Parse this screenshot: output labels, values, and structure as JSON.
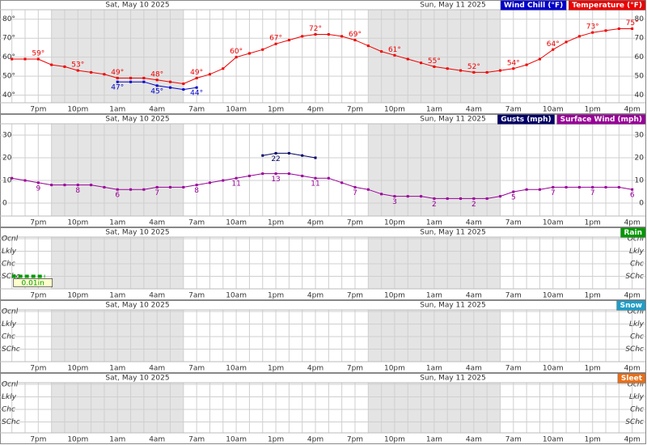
{
  "chart_data": [
    {
      "type": "line",
      "xlim": [
        0.1,
        49
      ],
      "ylim": [
        36,
        85
      ],
      "grid": true,
      "days": [
        "Sat, May 10 2025",
        "Sun, May 11 2025"
      ],
      "night": [
        [
          4,
          14
        ],
        [
          28,
          38
        ]
      ],
      "xticks": [
        {
          "value": 3,
          "label": "7pm"
        },
        {
          "value": 6,
          "label": "10pm"
        },
        {
          "value": 9,
          "label": "1am"
        },
        {
          "value": 12,
          "label": "4am"
        },
        {
          "value": 15,
          "label": "7am"
        },
        {
          "value": 18,
          "label": "10am"
        },
        {
          "value": 21,
          "label": "1pm"
        },
        {
          "value": 24,
          "label": "4pm"
        },
        {
          "value": 27,
          "label": "7pm"
        },
        {
          "value": 30,
          "label": "10pm"
        },
        {
          "value": 33,
          "label": "1am"
        },
        {
          "value": 36,
          "label": "4am"
        },
        {
          "value": 39,
          "label": "7am"
        },
        {
          "value": 42,
          "label": "10am"
        },
        {
          "value": 45,
          "label": "1pm"
        },
        {
          "value": 48,
          "label": "4pm"
        }
      ],
      "xminorticks": [
        1,
        2,
        3,
        4,
        5,
        6,
        7,
        8,
        9,
        10,
        11,
        12,
        13,
        14,
        15,
        16,
        17,
        18,
        19,
        20,
        21,
        22,
        23,
        24,
        25,
        26,
        27,
        28,
        29,
        30,
        31,
        32,
        33,
        34,
        35,
        36,
        37,
        38,
        39,
        40,
        41,
        42,
        43,
        44,
        45,
        46,
        47,
        48
      ],
      "yticks": [
        {
          "value": 40,
          "label": "40°"
        },
        {
          "value": 50,
          "label": "50°"
        },
        {
          "value": 60,
          "label": "60°"
        },
        {
          "value": 70,
          "label": "70°"
        },
        {
          "value": 80,
          "label": "80°"
        }
      ],
      "x": [
        1,
        2,
        3,
        4,
        5,
        6,
        7,
        8,
        9,
        10,
        11,
        12,
        13,
        14,
        15,
        16,
        17,
        18,
        19,
        20,
        21,
        22,
        23,
        24,
        25,
        26,
        27,
        28,
        29,
        30,
        31,
        32,
        33,
        34,
        35,
        36,
        37,
        38,
        39,
        40,
        41,
        42,
        43,
        44,
        45,
        46,
        47,
        48
      ],
      "series": [
        {
          "name": "Wind Chill (°F)",
          "color": "#0000cc",
          "label_position": "below",
          "values": [
            null,
            null,
            null,
            null,
            null,
            null,
            null,
            null,
            47,
            47,
            47,
            45,
            44,
            43,
            44,
            null,
            null,
            null,
            null,
            null,
            null,
            null,
            null,
            null,
            null,
            null,
            null,
            null,
            null,
            null,
            null,
            null,
            null,
            null,
            null,
            null,
            null,
            null,
            null,
            null,
            null,
            null,
            null,
            null,
            null,
            null,
            null,
            null
          ],
          "value_labels": [
            null,
            null,
            null,
            null,
            null,
            null,
            null,
            null,
            "47°",
            null,
            null,
            "45°",
            null,
            null,
            "44°",
            null,
            null,
            null,
            null,
            null,
            null,
            null,
            null,
            null,
            null,
            null,
            null,
            null,
            null,
            null,
            null,
            null,
            null,
            null,
            null,
            null,
            null,
            null,
            null,
            null,
            null,
            null,
            null,
            null,
            null,
            null,
            null,
            null
          ]
        },
        {
          "name": "Temperature (°F)",
          "color": "#ee0000",
          "label_position": "above",
          "values": [
            59,
            59,
            59,
            56,
            55,
            53,
            52,
            51,
            49,
            49,
            49,
            48,
            47,
            46,
            49,
            51,
            54,
            60,
            62,
            64,
            67,
            69,
            71,
            72,
            72,
            71,
            69,
            66,
            63,
            61,
            59,
            57,
            55,
            54,
            53,
            52,
            52,
            53,
            54,
            56,
            59,
            64,
            68,
            71,
            73,
            74,
            75,
            75
          ],
          "value_labels": [
            null,
            null,
            "59°",
            null,
            null,
            "53°",
            null,
            null,
            "49°",
            null,
            null,
            "48°",
            null,
            null,
            "49°",
            null,
            null,
            "60°",
            null,
            null,
            "67°",
            null,
            null,
            "72°",
            null,
            null,
            "69°",
            null,
            null,
            "61°",
            null,
            null,
            "55°",
            null,
            null,
            "52°",
            null,
            null,
            "54°",
            null,
            null,
            "64°",
            null,
            null,
            "73°",
            null,
            null,
            "75°"
          ]
        }
      ]
    },
    {
      "type": "line",
      "xlim": [
        0.1,
        49
      ],
      "ylim": [
        -5.7,
        35
      ],
      "grid": true,
      "days": [
        "Sat, May 10 2025",
        "Sun, May 11 2025"
      ],
      "night": [
        [
          4,
          14
        ],
        [
          28,
          38
        ]
      ],
      "xticks": [
        {
          "value": 3,
          "label": "7pm"
        },
        {
          "value": 6,
          "label": "10pm"
        },
        {
          "value": 9,
          "label": "1am"
        },
        {
          "value": 12,
          "label": "4am"
        },
        {
          "value": 15,
          "label": "7am"
        },
        {
          "value": 18,
          "label": "10am"
        },
        {
          "value": 21,
          "label": "1pm"
        },
        {
          "value": 24,
          "label": "4pm"
        },
        {
          "value": 27,
          "label": "7pm"
        },
        {
          "value": 30,
          "label": "10pm"
        },
        {
          "value": 33,
          "label": "1am"
        },
        {
          "value": 36,
          "label": "4am"
        },
        {
          "value": 39,
          "label": "7am"
        },
        {
          "value": 42,
          "label": "10am"
        },
        {
          "value": 45,
          "label": "1pm"
        },
        {
          "value": 48,
          "label": "4pm"
        }
      ],
      "xminorticks": [
        1,
        2,
        3,
        4,
        5,
        6,
        7,
        8,
        9,
        10,
        11,
        12,
        13,
        14,
        15,
        16,
        17,
        18,
        19,
        20,
        21,
        22,
        23,
        24,
        25,
        26,
        27,
        28,
        29,
        30,
        31,
        32,
        33,
        34,
        35,
        36,
        37,
        38,
        39,
        40,
        41,
        42,
        43,
        44,
        45,
        46,
        47,
        48
      ],
      "yticks": [
        0,
        10,
        20,
        30
      ],
      "x": [
        1,
        2,
        3,
        4,
        5,
        6,
        7,
        8,
        9,
        10,
        11,
        12,
        13,
        14,
        15,
        16,
        17,
        18,
        19,
        20,
        21,
        22,
        23,
        24,
        25,
        26,
        27,
        28,
        29,
        30,
        31,
        32,
        33,
        34,
        35,
        36,
        37,
        38,
        39,
        40,
        41,
        42,
        43,
        44,
        45,
        46,
        47,
        48
      ],
      "series": [
        {
          "name": "Gusts (mph)",
          "color": "#000066",
          "label_position": "below",
          "values": [
            null,
            null,
            null,
            null,
            null,
            null,
            null,
            null,
            null,
            null,
            null,
            null,
            null,
            null,
            null,
            null,
            null,
            null,
            null,
            21,
            22,
            22,
            21,
            20,
            null,
            null,
            null,
            null,
            null,
            null,
            null,
            null,
            null,
            null,
            null,
            null,
            null,
            null,
            null,
            null,
            null,
            null,
            null,
            null,
            null,
            null,
            null,
            null
          ],
          "value_labels": [
            null,
            null,
            null,
            null,
            null,
            null,
            null,
            null,
            null,
            null,
            null,
            null,
            null,
            null,
            null,
            null,
            null,
            null,
            null,
            null,
            "22",
            null,
            null,
            null,
            null,
            null,
            null,
            null,
            null,
            null,
            null,
            null,
            null,
            null,
            null,
            null,
            null,
            null,
            null,
            null,
            null,
            null,
            null,
            null,
            null,
            null,
            null,
            null
          ]
        },
        {
          "name": "Surface Wind (mph)",
          "color": "#990099",
          "label_position": "below",
          "values": [
            11,
            10,
            9,
            8,
            8,
            8,
            8,
            7,
            6,
            6,
            6,
            7,
            7,
            7,
            8,
            9,
            10,
            11,
            12,
            13,
            13,
            13,
            12,
            11,
            11,
            9,
            7,
            6,
            4,
            3,
            3,
            3,
            2,
            2,
            2,
            2,
            2,
            3,
            5,
            6,
            6,
            7,
            7,
            7,
            7,
            7,
            7,
            6
          ]
        }
      ]
    },
    {
      "type": "timeline",
      "xlim": [
        0.1,
        49
      ],
      "days": [
        "Sat, May 10 2025",
        "Sun, May 11 2025"
      ],
      "night": [
        [
          4,
          14
        ],
        [
          28,
          38
        ]
      ],
      "xticks": [
        {
          "value": 3,
          "label": "7pm"
        },
        {
          "value": 6,
          "label": "10pm"
        },
        {
          "value": 9,
          "label": "1am"
        },
        {
          "value": 12,
          "label": "4am"
        },
        {
          "value": 15,
          "label": "7am"
        },
        {
          "value": 18,
          "label": "10am"
        },
        {
          "value": 21,
          "label": "1pm"
        },
        {
          "value": 24,
          "label": "4pm"
        },
        {
          "value": 27,
          "label": "7pm"
        },
        {
          "value": 30,
          "label": "10pm"
        },
        {
          "value": 33,
          "label": "1am"
        },
        {
          "value": 36,
          "label": "4am"
        },
        {
          "value": 39,
          "label": "7am"
        },
        {
          "value": 42,
          "label": "10am"
        },
        {
          "value": 45,
          "label": "1pm"
        },
        {
          "value": 48,
          "label": "4pm"
        }
      ],
      "xminorticks": [
        1,
        2,
        3,
        4,
        5,
        6,
        7,
        8,
        9,
        10,
        11,
        12,
        13,
        14,
        15,
        16,
        17,
        18,
        19,
        20,
        21,
        22,
        23,
        24,
        25,
        26,
        27,
        28,
        29,
        30,
        31,
        32,
        33,
        34,
        35,
        36,
        37,
        38,
        39,
        40,
        41,
        42,
        43,
        44,
        45,
        46,
        47,
        48
      ],
      "levels": [
        "Ocnl",
        "Lkly",
        "Chc",
        "SChc"
      ],
      "series": [
        {
          "name": "Rain",
          "color": "#009900",
          "periods": [
            {
              "x": [
                1,
                3.5
              ],
              "level": "SChc",
              "amount": 0.01,
              "amount_label": "0.01in"
            }
          ]
        }
      ]
    },
    {
      "type": "timeline",
      "xlim": [
        0.1,
        49
      ],
      "days": [
        "Sat, May 10 2025",
        "Sun, May 11 2025"
      ],
      "night": [
        [
          4,
          14
        ],
        [
          28,
          38
        ]
      ],
      "xticks": [
        {
          "value": 3,
          "label": "7pm"
        },
        {
          "value": 6,
          "label": "10pm"
        },
        {
          "value": 9,
          "label": "1am"
        },
        {
          "value": 12,
          "label": "4am"
        },
        {
          "value": 15,
          "label": "7am"
        },
        {
          "value": 18,
          "label": "10am"
        },
        {
          "value": 21,
          "label": "1pm"
        },
        {
          "value": 24,
          "label": "4pm"
        },
        {
          "value": 27,
          "label": "7pm"
        },
        {
          "value": 30,
          "label": "10pm"
        },
        {
          "value": 33,
          "label": "1am"
        },
        {
          "value": 36,
          "label": "4am"
        },
        {
          "value": 39,
          "label": "7am"
        },
        {
          "value": 42,
          "label": "10am"
        },
        {
          "value": 45,
          "label": "1pm"
        },
        {
          "value": 48,
          "label": "4pm"
        }
      ],
      "xminorticks": [
        1,
        2,
        3,
        4,
        5,
        6,
        7,
        8,
        9,
        10,
        11,
        12,
        13,
        14,
        15,
        16,
        17,
        18,
        19,
        20,
        21,
        22,
        23,
        24,
        25,
        26,
        27,
        28,
        29,
        30,
        31,
        32,
        33,
        34,
        35,
        36,
        37,
        38,
        39,
        40,
        41,
        42,
        43,
        44,
        45,
        46,
        47,
        48
      ],
      "levels": [
        "Ocnl",
        "Lkly",
        "Chc",
        "SChc"
      ],
      "series": [
        {
          "name": "Snow",
          "color": "#1e9ec8",
          "periods": []
        }
      ]
    },
    {
      "type": "timeline",
      "xlim": [
        0.1,
        49
      ],
      "days": [
        "Sat, May 10 2025",
        "Sun, May 11 2025"
      ],
      "night": [
        [
          4,
          14
        ],
        [
          28,
          38
        ]
      ],
      "xticks": [
        {
          "value": 3,
          "label": "7pm"
        },
        {
          "value": 6,
          "label": "10pm"
        },
        {
          "value": 9,
          "label": "1am"
        },
        {
          "value": 12,
          "label": "4am"
        },
        {
          "value": 15,
          "label": "7am"
        },
        {
          "value": 18,
          "label": "10am"
        },
        {
          "value": 21,
          "label": "1pm"
        },
        {
          "value": 24,
          "label": "4pm"
        },
        {
          "value": 27,
          "label": "7pm"
        },
        {
          "value": 30,
          "label": "10pm"
        },
        {
          "value": 33,
          "label": "1am"
        },
        {
          "value": 36,
          "label": "4am"
        },
        {
          "value": 39,
          "label": "7am"
        },
        {
          "value": 42,
          "label": "10am"
        },
        {
          "value": 45,
          "label": "1pm"
        },
        {
          "value": 48,
          "label": "4pm"
        }
      ],
      "xminorticks": [
        1,
        2,
        3,
        4,
        5,
        6,
        7,
        8,
        9,
        10,
        11,
        12,
        13,
        14,
        15,
        16,
        17,
        18,
        19,
        20,
        21,
        22,
        23,
        24,
        25,
        26,
        27,
        28,
        29,
        30,
        31,
        32,
        33,
        34,
        35,
        36,
        37,
        38,
        39,
        40,
        41,
        42,
        43,
        44,
        45,
        46,
        47,
        48
      ],
      "levels": [
        "Ocnl",
        "Lkly",
        "Chc",
        "SChc"
      ],
      "series": [
        {
          "name": "Sleet",
          "color": "#e8701a",
          "periods": []
        }
      ]
    }
  ]
}
